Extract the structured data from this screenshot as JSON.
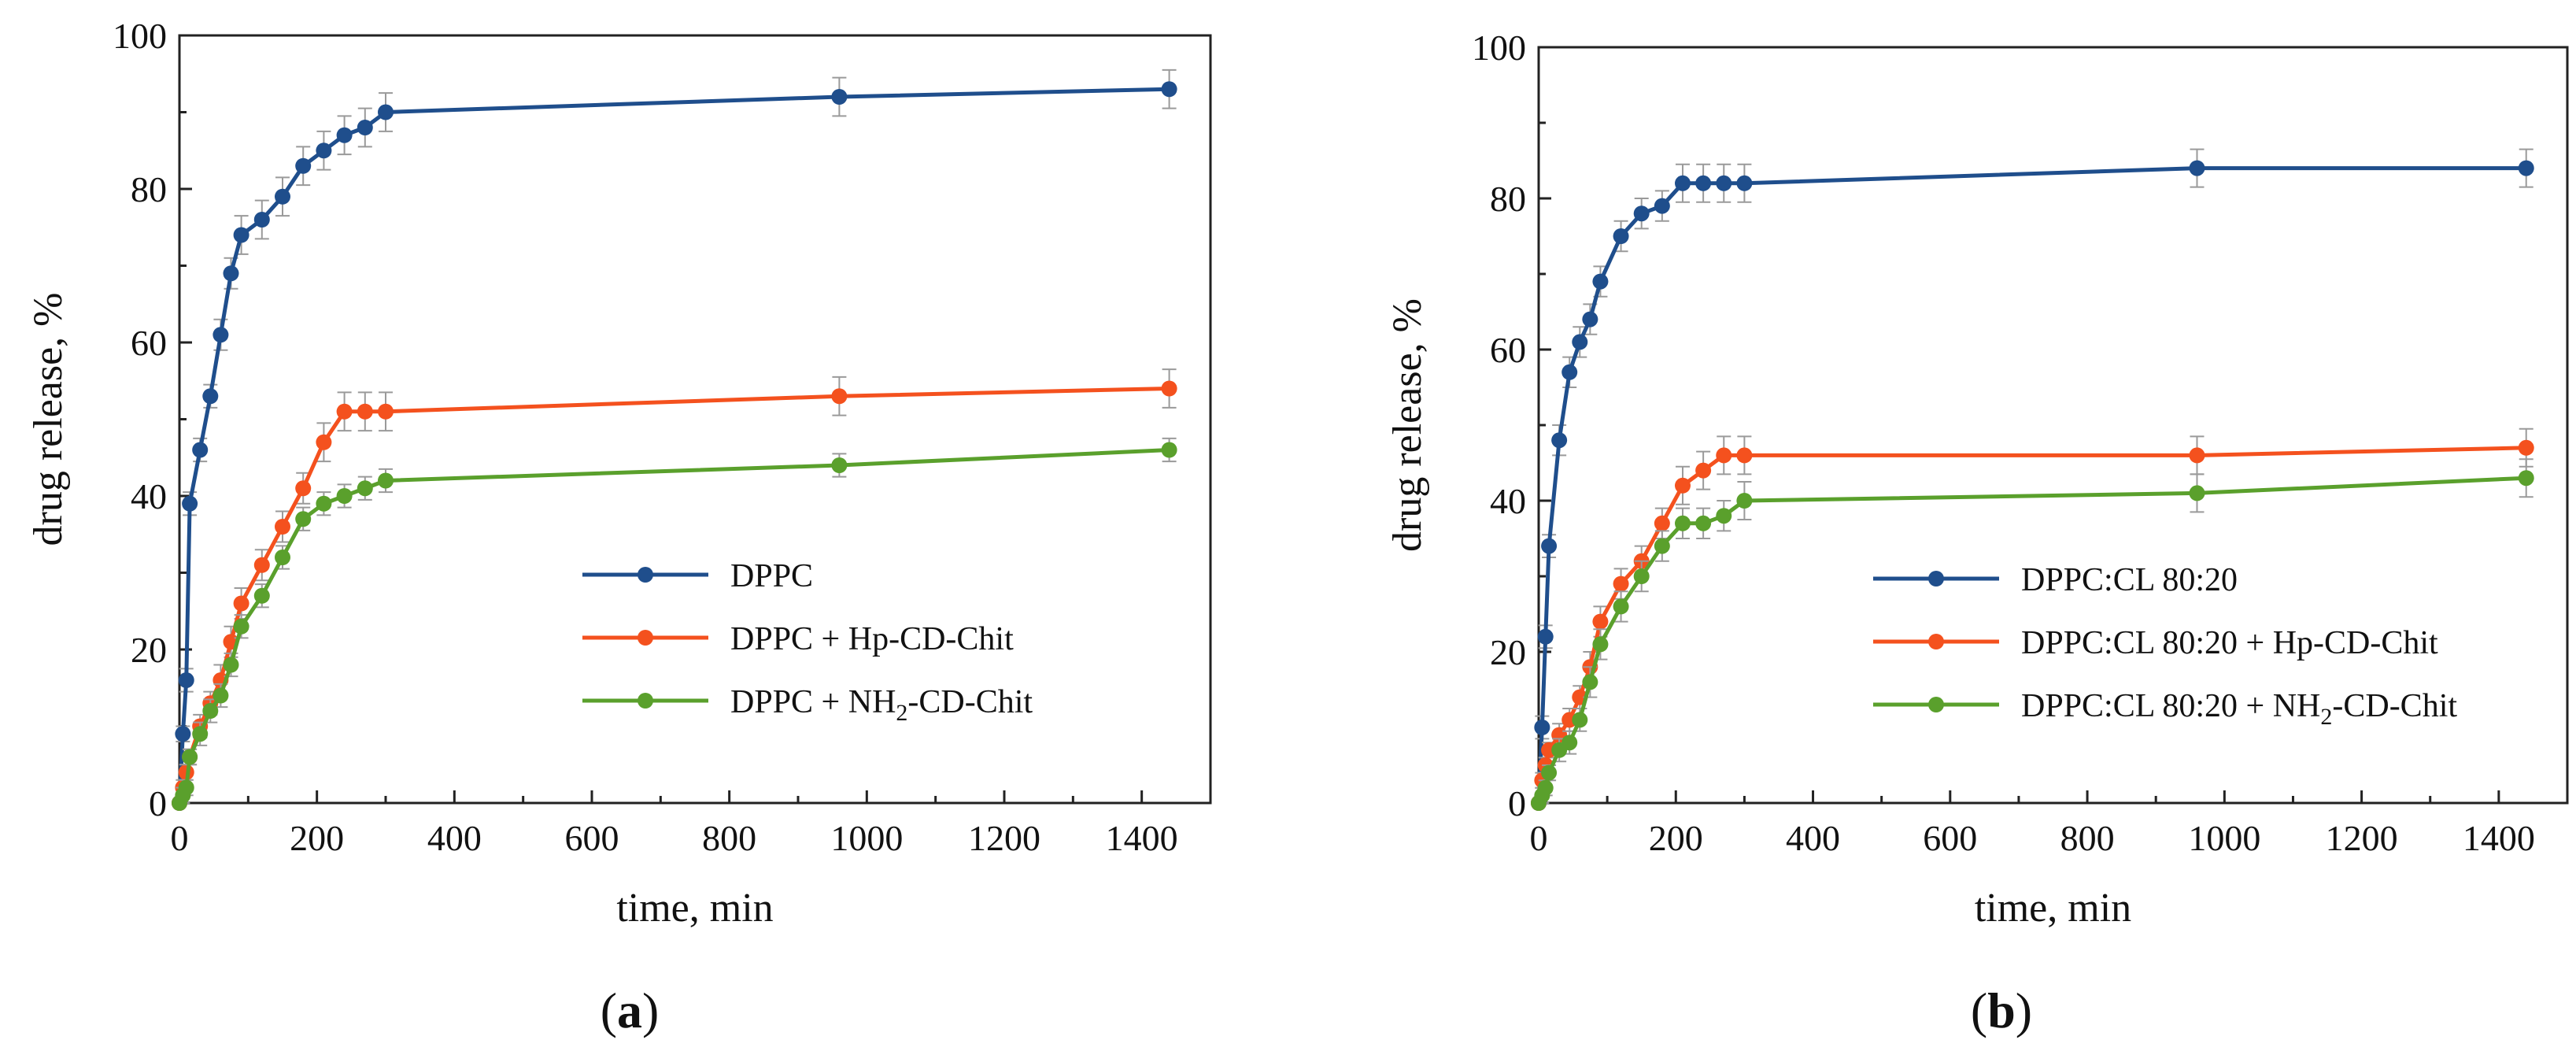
{
  "chart_data": [
    {
      "type": "line",
      "panel_label": "(a)",
      "panel_letter": "a",
      "xlabel": "time, min",
      "ylabel": "drug release, %",
      "xlim": [
        0,
        1500
      ],
      "ylim": [
        0,
        100
      ],
      "xticks": [
        0,
        200,
        400,
        600,
        800,
        1000,
        1200,
        1400
      ],
      "yticks": [
        0,
        20,
        40,
        60,
        80,
        100
      ],
      "legend_position": "lower-right",
      "series": [
        {
          "name": "DPPC",
          "legend_parts": [
            {
              "text": "DPPC"
            }
          ],
          "color": "#1f4e8c",
          "x": [
            0,
            5,
            10,
            15,
            30,
            45,
            60,
            75,
            90,
            120,
            150,
            180,
            210,
            240,
            270,
            300,
            960,
            1440
          ],
          "y": [
            0,
            9,
            16,
            39,
            46,
            53,
            61,
            69,
            74,
            76,
            79,
            83,
            85,
            87,
            88,
            90,
            92,
            93
          ],
          "err": [
            0,
            1,
            1.5,
            1.5,
            1.5,
            1.5,
            2,
            2,
            2.5,
            2.5,
            2.5,
            2.5,
            2.5,
            2.5,
            2.5,
            2.5,
            2.5,
            2.5
          ]
        },
        {
          "name": "DPPC + Hp-CD-Chit",
          "legend_parts": [
            {
              "text": "DPPC + Hp-CD-Chit"
            }
          ],
          "color": "#f4511e",
          "x": [
            0,
            5,
            10,
            15,
            30,
            45,
            60,
            75,
            90,
            120,
            150,
            180,
            210,
            240,
            270,
            300,
            960,
            1440
          ],
          "y": [
            0,
            2,
            4,
            6,
            10,
            13,
            16,
            21,
            26,
            31,
            36,
            41,
            47,
            51,
            51,
            51,
            53,
            54
          ],
          "err": [
            0,
            1,
            1,
            1,
            1.5,
            1.5,
            2,
            2,
            2,
            2,
            2,
            2,
            2.5,
            2.5,
            2.5,
            2.5,
            2.5,
            2.5
          ]
        },
        {
          "name": "DPPC + NH2-CD-Chit",
          "legend_parts": [
            {
              "text": "DPPC + NH"
            },
            {
              "text": "2",
              "sub": true
            },
            {
              "text": "-CD-Chit"
            }
          ],
          "color": "#5aa02c",
          "x": [
            0,
            5,
            10,
            15,
            30,
            45,
            60,
            75,
            90,
            120,
            150,
            180,
            210,
            240,
            270,
            300,
            960,
            1440
          ],
          "y": [
            0,
            1,
            2,
            6,
            9,
            12,
            14,
            18,
            23,
            27,
            32,
            37,
            39,
            40,
            41,
            42,
            44,
            46
          ],
          "err": [
            0,
            1,
            1,
            1,
            1.5,
            1.5,
            1.5,
            1.5,
            1.5,
            1.5,
            1.5,
            1.5,
            1.5,
            1.5,
            1.5,
            1.5,
            1.5,
            1.5
          ]
        }
      ]
    },
    {
      "type": "line",
      "panel_label": "(b)",
      "panel_letter": "b",
      "xlabel": "time, min",
      "ylabel": "drug release, %",
      "xlim": [
        0,
        1500
      ],
      "ylim": [
        0,
        100
      ],
      "xticks": [
        0,
        200,
        400,
        600,
        800,
        1000,
        1200,
        1400
      ],
      "yticks": [
        0,
        20,
        40,
        60,
        80,
        100
      ],
      "legend_position": "lower-right",
      "series": [
        {
          "name": "DPPC:CL 80:20",
          "legend_parts": [
            {
              "text": "DPPC:CL 80:20"
            }
          ],
          "color": "#1f4e8c",
          "x": [
            0,
            5,
            10,
            15,
            30,
            45,
            60,
            75,
            90,
            120,
            150,
            180,
            210,
            240,
            270,
            300,
            960,
            1440
          ],
          "y": [
            0,
            10,
            22,
            34,
            48,
            57,
            61,
            64,
            69,
            75,
            78,
            79,
            82,
            82,
            82,
            82,
            84,
            84
          ],
          "err": [
            0,
            1.5,
            1.5,
            1.5,
            2,
            2,
            2,
            2,
            2,
            2,
            2,
            2,
            2.5,
            2.5,
            2.5,
            2.5,
            2.5,
            2.5
          ]
        },
        {
          "name": "DPPC:CL 80:20 + Hp-CD-Chit",
          "legend_parts": [
            {
              "text": "DPPC:CL 80:20 + Hp-CD-Chit"
            }
          ],
          "color": "#f4511e",
          "x": [
            0,
            5,
            10,
            15,
            30,
            45,
            60,
            75,
            90,
            120,
            150,
            180,
            210,
            240,
            270,
            300,
            960,
            1440
          ],
          "y": [
            0,
            3,
            5,
            7,
            9,
            11,
            14,
            18,
            24,
            29,
            32,
            37,
            42,
            44,
            46,
            46,
            46,
            47
          ],
          "err": [
            0,
            1,
            1,
            1,
            1.5,
            1.5,
            1.5,
            2,
            2,
            2,
            2,
            2,
            2.5,
            2.5,
            2.5,
            2.5,
            2.5,
            2.5
          ]
        },
        {
          "name": "DPPC:CL 80:20 + NH2-CD-Chit",
          "legend_parts": [
            {
              "text": "DPPC:CL 80:20 + NH"
            },
            {
              "text": "2",
              "sub": true
            },
            {
              "text": "-CD-Chit"
            }
          ],
          "color": "#5aa02c",
          "x": [
            0,
            5,
            10,
            15,
            30,
            45,
            60,
            75,
            90,
            120,
            150,
            180,
            210,
            240,
            270,
            300,
            960,
            1440
          ],
          "y": [
            0,
            1,
            2,
            4,
            7,
            8,
            11,
            16,
            21,
            26,
            30,
            34,
            37,
            37,
            38,
            40,
            41,
            43
          ],
          "err": [
            0,
            1,
            1,
            1,
            1.5,
            1.5,
            1.5,
            2,
            2,
            2,
            2,
            2,
            2,
            2,
            2,
            2.5,
            2.5,
            2.5
          ]
        }
      ]
    }
  ]
}
